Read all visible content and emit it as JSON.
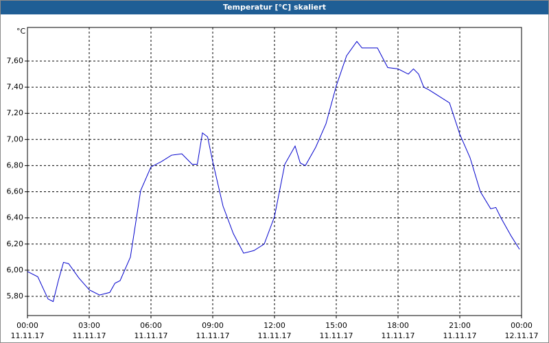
{
  "chart_data": {
    "type": "line",
    "title": "Temperatur [°C] skaliert",
    "y_label": "°C",
    "x": [
      0,
      0.5,
      1,
      1.25,
      1.5,
      1.75,
      2,
      2.5,
      3,
      3.5,
      4,
      4.25,
      4.5,
      5,
      5.5,
      6,
      6.5,
      7,
      7.5,
      8,
      8.25,
      8.5,
      8.75,
      9,
      9.5,
      10,
      10.5,
      11,
      11.5,
      12,
      12.5,
      13,
      13.25,
      13.5,
      14,
      14.5,
      15,
      15.5,
      16,
      16.25,
      16.5,
      17,
      17.5,
      18,
      18.5,
      18.75,
      19,
      19.25,
      19.5,
      20,
      20.5,
      21,
      21.5,
      22,
      22.5,
      22.75,
      23,
      23.5,
      23.9
    ],
    "series": [
      {
        "name": "Temperatur",
        "color": "#0000cc",
        "values": [
          5.99,
          5.95,
          5.78,
          5.76,
          5.92,
          6.06,
          6.05,
          5.94,
          5.85,
          5.81,
          5.83,
          5.9,
          5.92,
          6.1,
          6.61,
          6.79,
          6.83,
          6.88,
          6.89,
          6.81,
          6.81,
          7.05,
          7.02,
          6.83,
          6.49,
          6.28,
          6.13,
          6.15,
          6.2,
          6.41,
          6.81,
          6.95,
          6.82,
          6.8,
          6.94,
          7.12,
          7.41,
          7.64,
          7.75,
          7.7,
          7.7,
          7.7,
          7.55,
          7.54,
          7.5,
          7.54,
          7.5,
          7.4,
          7.38,
          7.33,
          7.28,
          7.04,
          6.86,
          6.6,
          6.47,
          6.48,
          6.4,
          6.26,
          6.16
        ]
      }
    ],
    "xlim": [
      0,
      24
    ],
    "xticks": [
      {
        "value": 0,
        "label": [
          "00:00",
          "11.11.17"
        ]
      },
      {
        "value": 3,
        "label": [
          "03:00",
          "11.11.17"
        ]
      },
      {
        "value": 6,
        "label": [
          "06:00",
          "11.11.17"
        ]
      },
      {
        "value": 9,
        "label": [
          "09:00",
          "11.11.17"
        ]
      },
      {
        "value": 12,
        "label": [
          "12:00",
          "11.11.17"
        ]
      },
      {
        "value": 15,
        "label": [
          "15:00",
          "11.11.17"
        ]
      },
      {
        "value": 18,
        "label": [
          "18:00",
          "11.11.17"
        ]
      },
      {
        "value": 21,
        "label": [
          "21:00",
          "11.11.17"
        ]
      },
      {
        "value": 24,
        "label": [
          "00:00",
          "12.11.17"
        ]
      }
    ],
    "ylim": [
      5.653,
      7.857
    ],
    "yticks": [
      {
        "value": 5.8,
        "label": "5,80"
      },
      {
        "value": 6.0,
        "label": "6,00"
      },
      {
        "value": 6.2,
        "label": "6,20"
      },
      {
        "value": 6.4,
        "label": "6,40"
      },
      {
        "value": 6.6,
        "label": "6,60"
      },
      {
        "value": 6.8,
        "label": "6,80"
      },
      {
        "value": 7.0,
        "label": "7,00"
      },
      {
        "value": 7.2,
        "label": "7,20"
      },
      {
        "value": 7.4,
        "label": "7,40"
      },
      {
        "value": 7.6,
        "label": "7,60"
      }
    ],
    "grid": true
  }
}
